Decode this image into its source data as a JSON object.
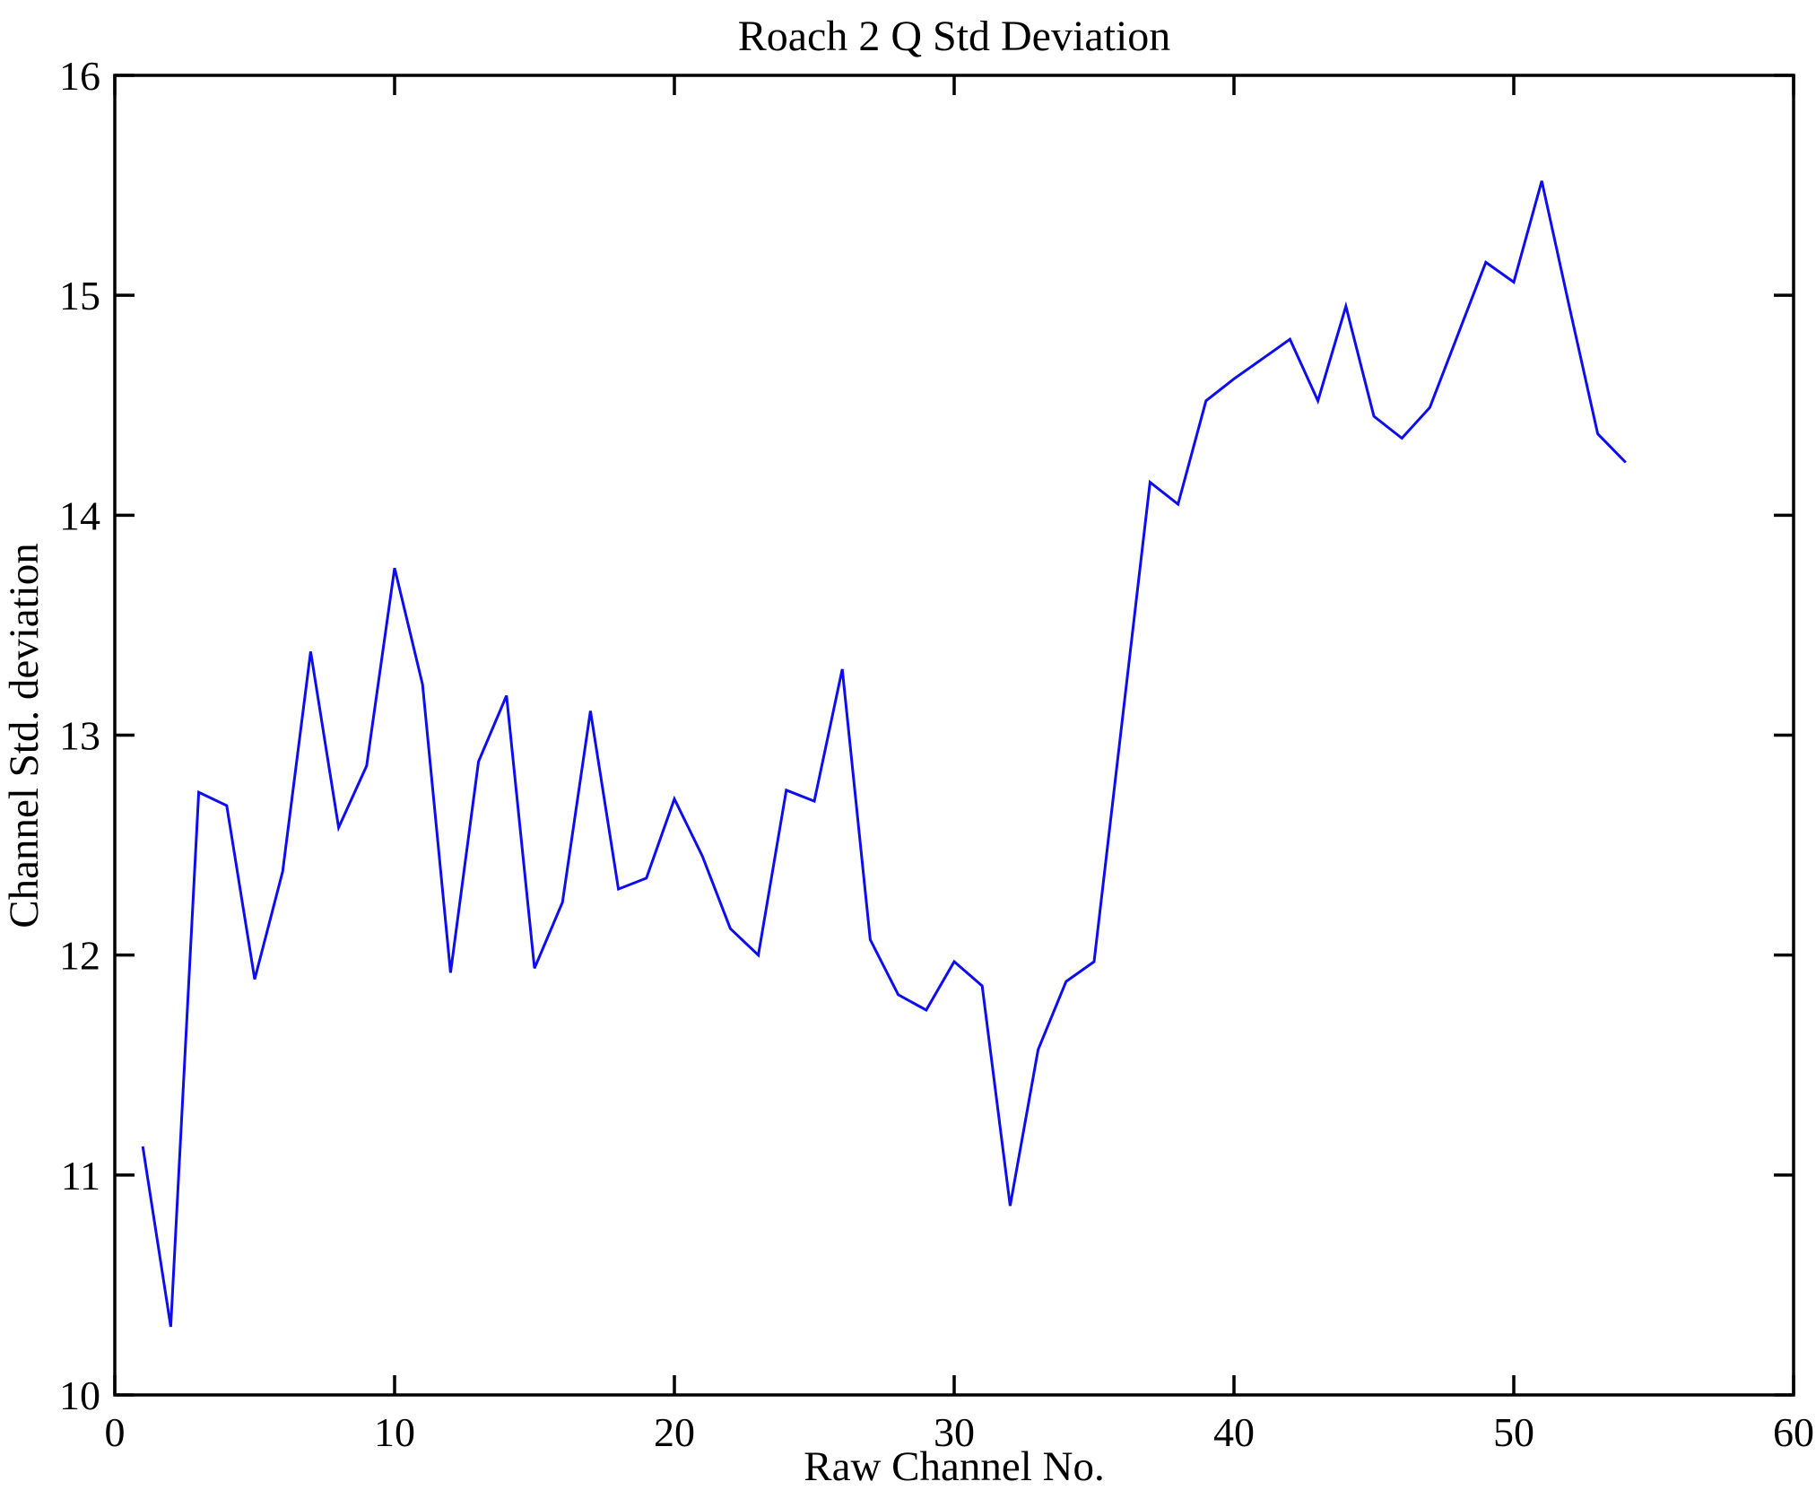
{
  "title": "Roach 2 Q Std Deviation",
  "chart_data": {
    "type": "line",
    "title": "Roach 2 Q Std Deviation",
    "xlabel": "Raw Channel No.",
    "ylabel": "Channel Std. deviation",
    "xlim": [
      0,
      60
    ],
    "ylim": [
      10,
      16
    ],
    "xticks": [
      0,
      10,
      20,
      30,
      40,
      50,
      60
    ],
    "yticks": [
      10,
      11,
      12,
      13,
      14,
      15,
      16
    ],
    "grid": false,
    "legend": "none",
    "line_color": "#0d0dee",
    "axis_color": "#000000",
    "x": [
      1,
      2,
      3,
      4,
      5,
      6,
      7,
      8,
      9,
      10,
      11,
      12,
      13,
      14,
      15,
      16,
      17,
      18,
      19,
      20,
      21,
      22,
      23,
      24,
      25,
      26,
      27,
      28,
      29,
      30,
      31,
      32,
      33,
      34,
      35,
      36,
      37,
      38,
      39,
      40,
      41,
      42,
      43,
      44,
      45,
      46,
      47,
      48,
      49,
      50,
      51,
      52,
      53,
      54
    ],
    "values": [
      11.13,
      10.31,
      12.74,
      12.68,
      11.89,
      12.38,
      13.38,
      12.58,
      12.86,
      13.76,
      13.23,
      11.92,
      12.88,
      13.18,
      11.94,
      12.24,
      13.11,
      12.3,
      12.35,
      12.71,
      12.45,
      12.12,
      12.0,
      12.75,
      12.7,
      13.3,
      12.07,
      11.82,
      11.75,
      11.97,
      11.86,
      10.86,
      11.57,
      11.88,
      11.97,
      13.06,
      14.15,
      14.05,
      14.52,
      14.62,
      14.71,
      14.8,
      14.52,
      14.95,
      14.45,
      14.35,
      14.49,
      14.82,
      15.15,
      15.06,
      15.52,
      14.94,
      14.37,
      14.24
    ]
  }
}
